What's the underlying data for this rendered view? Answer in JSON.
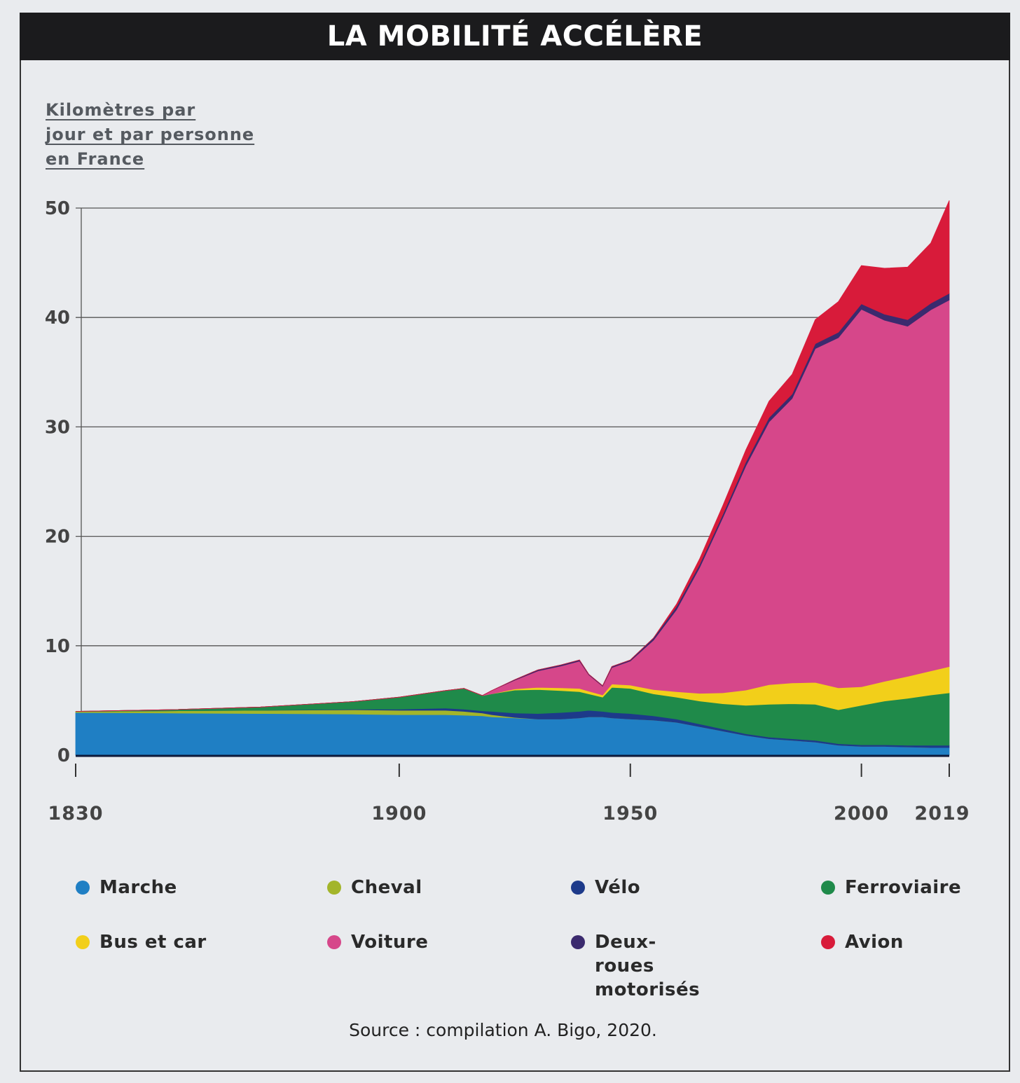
{
  "title": "LA MOBILITÉ ACCÉLÈRE",
  "source": "Source : compilation A. Bigo, 2020.",
  "chart_data": {
    "type": "area",
    "stacked": true,
    "title": "LA MOBILITÉ ACCÉLÈRE",
    "ylabel_lines": [
      "Kilomètres par",
      "jour et par personne",
      "en France"
    ],
    "xlabel": "",
    "xlim": [
      1830,
      2019
    ],
    "ylim": [
      0,
      50
    ],
    "x_ticks": [
      1830,
      1900,
      1950,
      2000,
      2019
    ],
    "y_ticks": [
      0,
      10,
      20,
      30,
      40,
      50
    ],
    "grid": true,
    "legend_position": "bottom",
    "x": [
      1830,
      1850,
      1870,
      1890,
      1900,
      1910,
      1914,
      1918,
      1920,
      1925,
      1930,
      1935,
      1939,
      1941,
      1944,
      1946,
      1950,
      1955,
      1960,
      1965,
      1970,
      1975,
      1980,
      1985,
      1990,
      1995,
      2000,
      2005,
      2010,
      2015,
      2019
    ],
    "series": [
      {
        "name": "Marche",
        "color": "#1f7fc4",
        "values": [
          3.9,
          3.85,
          3.8,
          3.75,
          3.7,
          3.7,
          3.65,
          3.6,
          3.5,
          3.4,
          3.3,
          3.3,
          3.4,
          3.5,
          3.5,
          3.4,
          3.3,
          3.2,
          3.0,
          2.6,
          2.2,
          1.8,
          1.5,
          1.35,
          1.2,
          0.9,
          0.8,
          0.8,
          0.75,
          0.7,
          0.7
        ]
      },
      {
        "name": "Cheval",
        "color": "#a3b52a",
        "values": [
          0.1,
          0.2,
          0.3,
          0.4,
          0.4,
          0.4,
          0.35,
          0.25,
          0.2,
          0.05,
          0,
          0,
          0,
          0,
          0,
          0,
          0,
          0,
          0,
          0,
          0,
          0,
          0,
          0,
          0,
          0,
          0,
          0,
          0,
          0,
          0
        ]
      },
      {
        "name": "Vélo",
        "color": "#1d3a8a",
        "values": [
          0,
          0,
          0,
          0.05,
          0.1,
          0.2,
          0.2,
          0.2,
          0.3,
          0.4,
          0.5,
          0.6,
          0.6,
          0.6,
          0.5,
          0.5,
          0.5,
          0.4,
          0.3,
          0.25,
          0.2,
          0.15,
          0.15,
          0.15,
          0.15,
          0.15,
          0.15,
          0.15,
          0.15,
          0.2,
          0.2
        ]
      },
      {
        "name": "Ferroviaire",
        "color": "#1f8a4a",
        "values": [
          0,
          0.1,
          0.3,
          0.7,
          1.1,
          1.6,
          1.9,
          1.4,
          1.6,
          2.1,
          2.2,
          2.0,
          1.8,
          1.5,
          1.3,
          2.3,
          2.3,
          2.0,
          2.0,
          2.1,
          2.3,
          2.6,
          3.0,
          3.2,
          3.3,
          3.1,
          3.6,
          4.0,
          4.3,
          4.6,
          4.8
        ]
      },
      {
        "name": "Bus et car",
        "color": "#f2cf1a",
        "values": [
          0,
          0,
          0,
          0,
          0,
          0,
          0,
          0,
          0,
          0.1,
          0.2,
          0.25,
          0.3,
          0.25,
          0.2,
          0.3,
          0.3,
          0.4,
          0.5,
          0.7,
          1.0,
          1.4,
          1.8,
          1.9,
          2.0,
          2.0,
          1.7,
          1.8,
          2.0,
          2.2,
          2.4
        ]
      },
      {
        "name": "Voiture",
        "color": "#d6478a",
        "values": [
          0,
          0,
          0,
          0,
          0,
          0,
          0,
          0,
          0.3,
          0.8,
          1.5,
          2.0,
          2.5,
          1.5,
          0.8,
          1.5,
          2.2,
          4.5,
          7.5,
          11.5,
          16,
          20.5,
          24,
          26,
          30.5,
          32,
          34.5,
          33,
          32,
          33,
          33.5
        ]
      },
      {
        "name": "Deux-roues motorisés",
        "color": "#3b2a6e",
        "values": [
          0,
          0,
          0,
          0,
          0,
          0,
          0,
          0,
          0,
          0.05,
          0.1,
          0.1,
          0.1,
          0.05,
          0.05,
          0.1,
          0.1,
          0.2,
          0.3,
          0.3,
          0.3,
          0.35,
          0.4,
          0.4,
          0.45,
          0.5,
          0.5,
          0.55,
          0.6,
          0.6,
          0.6
        ]
      },
      {
        "name": "Avion",
        "color": "#d81b3a",
        "values": [
          0,
          0,
          0,
          0,
          0,
          0,
          0,
          0,
          0,
          0,
          0,
          0,
          0,
          0,
          0,
          0,
          0,
          0,
          0.2,
          0.5,
          0.8,
          1.1,
          1.5,
          1.8,
          2.2,
          2.8,
          3.5,
          4.2,
          4.8,
          5.5,
          8.5
        ]
      }
    ],
    "legend_order": [
      0,
      1,
      2,
      3,
      4,
      5,
      6,
      7
    ]
  }
}
